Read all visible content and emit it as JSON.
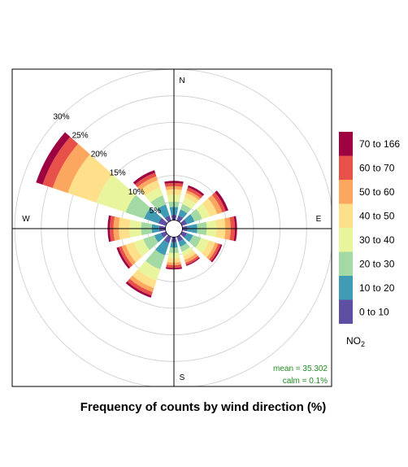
{
  "chart_data": {
    "type": "polar-stacked-bar",
    "xlabel": "Frequency of counts by wind direction (%)",
    "compass": {
      "N": "N",
      "E": "E",
      "S": "S",
      "W": "W"
    },
    "ring_labels": [
      "5%",
      "10%",
      "15%",
      "20%",
      "25%",
      "30%"
    ],
    "ring_values": [
      5,
      10,
      15,
      20,
      25,
      30
    ],
    "rmax": 33,
    "inner_radius_pct": 1.6,
    "stats": {
      "mean": "mean = 35.302",
      "calm": "calm = 0.1%"
    },
    "legend": {
      "title_main": "NO",
      "title_sub": "2",
      "categories": [
        "70 to 166",
        "60 to 70",
        "50 to 60",
        "40 to 50",
        "30 to 40",
        "20 to 30",
        "10 to 20",
        "0 to 10"
      ],
      "colors": [
        "#9E0142",
        "#E8504A",
        "#FCA75F",
        "#FEE08B",
        "#E9F59D",
        "#A3D9A3",
        "#3F9CB4",
        "#5E4FA2"
      ]
    },
    "bin_colors_inner_to_outer": [
      "#5E4FA2",
      "#3F9CB4",
      "#A3D9A3",
      "#E9F59D",
      "#FEE08B",
      "#FCA75F",
      "#E8504A",
      "#9E0142"
    ],
    "directions": [
      0,
      30,
      60,
      90,
      120,
      150,
      180,
      210,
      240,
      270,
      300,
      330
    ],
    "series": [
      {
        "direction": 0,
        "cumulative": [
          1.0,
          2.5,
          3.5,
          4.8,
          5.8,
          6.4,
          7.0,
          7.4
        ]
      },
      {
        "direction": 30,
        "cumulative": [
          1.0,
          2.2,
          3.3,
          4.6,
          5.5,
          6.0,
          6.6,
          7.0
        ]
      },
      {
        "direction": 60,
        "cumulative": [
          1.0,
          2.5,
          4.0,
          5.5,
          7.0,
          8.0,
          8.7,
          9.2
        ]
      },
      {
        "direction": 90,
        "cumulative": [
          1.0,
          2.8,
          4.6,
          6.4,
          8.1,
          9.1,
          9.9,
          10.3
        ]
      },
      {
        "direction": 120,
        "cumulative": [
          1.0,
          2.2,
          3.8,
          5.4,
          6.6,
          7.2,
          7.7,
          8.0
        ]
      },
      {
        "direction": 150,
        "cumulative": [
          1.0,
          2.0,
          3.0,
          3.8,
          4.6,
          5.2,
          5.6,
          5.8
        ]
      },
      {
        "direction": 180,
        "cumulative": [
          1.0,
          2.0,
          3.0,
          4.0,
          4.8,
          5.3,
          5.8,
          6.1
        ]
      },
      {
        "direction": 210,
        "cumulative": [
          1.3,
          3.7,
          6.5,
          8.7,
          10.2,
          11.0,
          11.7,
          12.1
        ]
      },
      {
        "direction": 240,
        "cumulative": [
          1.0,
          2.3,
          4.5,
          6.4,
          8.0,
          8.8,
          9.4,
          9.8
        ]
      },
      {
        "direction": 270,
        "cumulative": [
          1.2,
          2.6,
          4.6,
          6.8,
          8.8,
          9.8,
          10.5,
          10.9
        ]
      },
      {
        "direction": 300,
        "cumulative": [
          1.5,
          4.3,
          8.0,
          13.8,
          19.5,
          22.5,
          24.5,
          25.8
        ]
      },
      {
        "direction": 330,
        "cumulative": [
          1.0,
          3.2,
          5.0,
          6.6,
          8.0,
          8.8,
          9.5,
          10.0
        ]
      }
    ]
  }
}
